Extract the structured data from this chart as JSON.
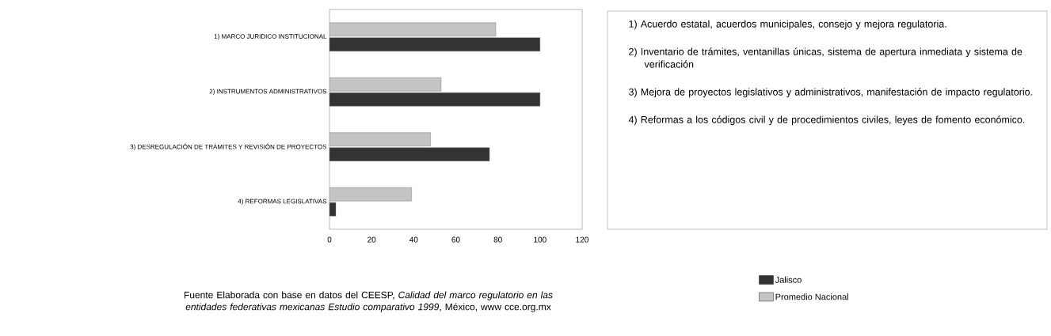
{
  "chart_data": {
    "type": "bar",
    "orientation": "horizontal",
    "categories": [
      "1) MARCO JURIDICO INSTITUCIONAL",
      "2) INSTRUMENTOS ADMINISTRATIVOS",
      "3) DESREGULACIÓN DE TRÁMITES Y REVISIÓN DE PROYECTOS",
      "4) REFORMAS LEGISLATIVAS"
    ],
    "series": [
      {
        "name": "Jalisco",
        "color": "#333333",
        "values": [
          100,
          100,
          76,
          3
        ]
      },
      {
        "name": "Promedio Nacional",
        "color": "#c4c4c4",
        "values": [
          79,
          53,
          48,
          39
        ]
      }
    ],
    "xlim": [
      0,
      120
    ],
    "xticks": [
      0,
      20,
      40,
      60,
      80,
      100,
      120
    ],
    "legend": "bottom right",
    "annotations": [
      "1) Acuerdo estatal, acuerdos municipales, consejo y mejora regulatoria.",
      "2) Inventario de trámites, ventanillas únicas, sistema de apertura inmediata y sistema de verificación",
      "3) Mejora de proyectos legislativos y administrativos, manifestación de impacto regulatorio.",
      "4) Reformas a los códigos civil y de procedimientos civiles, leyes de fomento económico.",
      "Fuente Elaborada con base en datos del CEESP, *Calidad del marco regulatorio en las entidades federativas mexicanas Estudio comparativo 1999*, México, www cce.org.mx"
    ]
  }
}
